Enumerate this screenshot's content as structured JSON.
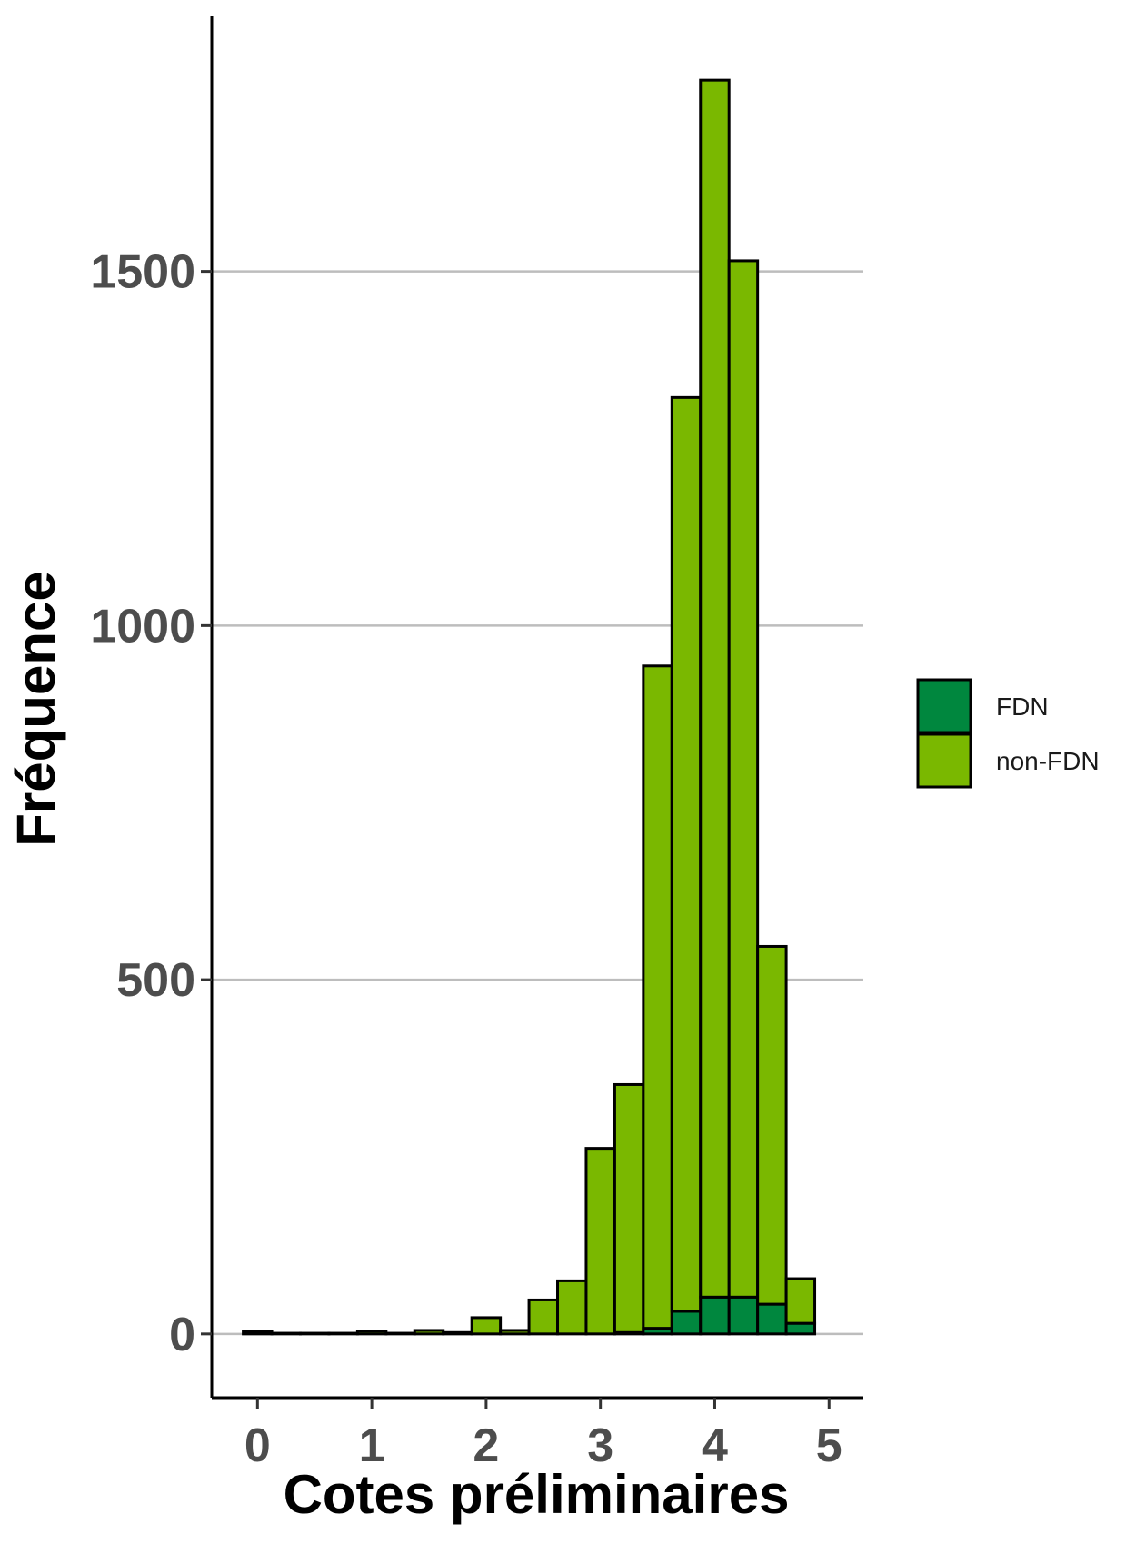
{
  "chart_data": {
    "type": "bar",
    "stacked": true,
    "xlabel": "Cotes préliminaires",
    "ylabel": "Fréquence",
    "xlim": [
      -0.4,
      5.3
    ],
    "ylim": [
      -90,
      1860
    ],
    "x_ticks": [
      0,
      1,
      2,
      3,
      4,
      5
    ],
    "y_ticks": [
      0,
      500,
      1000,
      1500
    ],
    "grid": "horizontal major",
    "legend_position": "right",
    "bin_width": 0.25,
    "bins": [
      0,
      0.25,
      0.5,
      0.75,
      1,
      1.25,
      1.5,
      1.75,
      2,
      2.25,
      2.5,
      2.75,
      3,
      3.25,
      3.5,
      3.75,
      4,
      4.25,
      4.5,
      4.75,
      5
    ],
    "series": [
      {
        "name": "FDN",
        "color": "#00873E",
        "values": [
          0,
          0,
          0,
          0,
          0,
          0,
          0,
          0,
          0,
          0,
          0,
          0,
          0,
          2,
          8,
          32,
          52,
          52,
          42,
          15,
          0
        ]
      },
      {
        "name": "non-FDN",
        "color": "#7AB800",
        "values": [
          3,
          1,
          1,
          1,
          4,
          1,
          5,
          2,
          23,
          5,
          48,
          75,
          262,
          350,
          935,
          1290,
          1718,
          1463,
          505,
          63,
          0
        ]
      }
    ]
  }
}
